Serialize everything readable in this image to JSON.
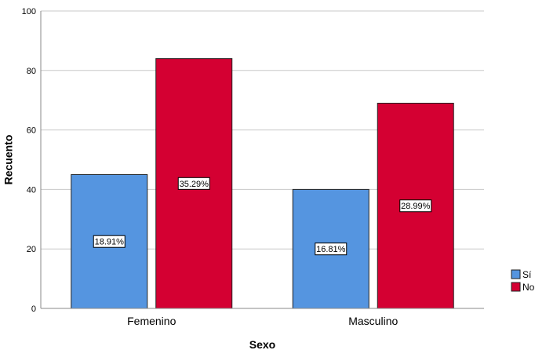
{
  "chart_data": {
    "type": "bar",
    "categories": [
      "Femenino",
      "Masculino"
    ],
    "series": [
      {
        "name": "Sí",
        "values": [
          45,
          40
        ],
        "labels": [
          "18.91%",
          "16.81%"
        ],
        "color": "#5595e0"
      },
      {
        "name": "No",
        "values": [
          84,
          69
        ],
        "labels": [
          "35.29%",
          "28.99%"
        ],
        "color": "#d40032"
      }
    ],
    "xlabel": "Sexo",
    "ylabel": "Recuento",
    "ylim": [
      0,
      100
    ],
    "yticks": [
      0,
      20,
      40,
      60,
      80,
      100
    ],
    "grid": true,
    "legend": "bottom-right"
  }
}
